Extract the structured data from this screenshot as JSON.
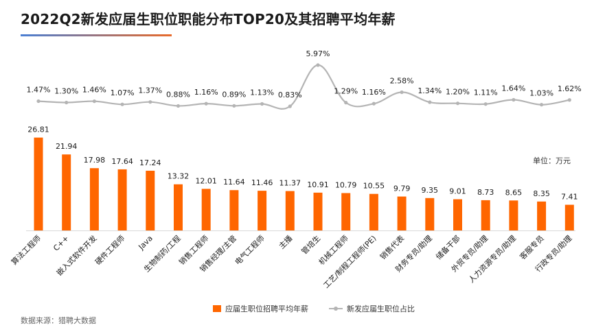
{
  "page": {
    "title": "2022Q2新发应届生职位职能分布TOP20及其招聘平均年薪",
    "unit_label": "单位：万元",
    "source": "数据来源：猎聘大数据"
  },
  "colors": {
    "bar": "#ff6600",
    "line": "#b4b4b4",
    "text": "#1a1a1a"
  },
  "chart_data": {
    "type": "bar+line",
    "title": "2022Q2新发应届生职位职能分布TOP20及其招聘平均年薪",
    "categories": [
      "算法工程师",
      "C++",
      "嵌入式软件开发",
      "硬件工程师",
      "Java",
      "生物制药/工程",
      "销售工程师",
      "销售经理/主管",
      "电气工程师",
      "主播",
      "管培生",
      "机械工程师",
      "工艺/制程工程师(PE)",
      "销售代表",
      "财务专员/助理",
      "储备干部",
      "外贸专员/助理",
      "人力资源专员/助理",
      "客服专员",
      "行政专员/助理"
    ],
    "series": [
      {
        "name": "应届生职位招聘平均年薪",
        "type": "bar",
        "unit": "万元",
        "values": [
          26.81,
          21.94,
          17.98,
          17.64,
          17.24,
          13.32,
          12.01,
          11.64,
          11.46,
          11.37,
          10.91,
          10.79,
          10.55,
          9.79,
          9.35,
          9.01,
          8.73,
          8.65,
          8.35,
          7.41
        ],
        "labels": [
          "26.81",
          "21.94",
          "17.98",
          "17.64",
          "17.24",
          "13.32",
          "12.01",
          "11.64",
          "11.46",
          "11.37",
          "10.91",
          "10.79",
          "10.55",
          "9.79",
          "9.35",
          "9.01",
          "8.73",
          "8.65",
          "8.35",
          "7.41"
        ]
      },
      {
        "name": "新发应届生职位占比",
        "type": "line",
        "unit": "%",
        "values": [
          1.47,
          1.3,
          1.46,
          1.07,
          1.37,
          0.88,
          1.16,
          0.89,
          1.13,
          0.83,
          5.97,
          1.29,
          1.16,
          2.58,
          1.34,
          1.2,
          1.11,
          1.64,
          1.03,
          1.62
        ],
        "labels": [
          "1.47%",
          "1.30%",
          "1.46%",
          "1.07%",
          "1.37%",
          "0.88%",
          "1.16%",
          "0.89%",
          "1.13%",
          "0.83%",
          "5.97%",
          "1.29%",
          "1.16%",
          "2.58%",
          "1.34%",
          "1.20%",
          "1.11%",
          "1.64%",
          "1.03%",
          "1.62%"
        ]
      }
    ],
    "legend": [
      "应届生职位招聘平均年薪",
      "新发应届生职位占比"
    ],
    "legend_position": "bottom-center",
    "grid": false
  }
}
